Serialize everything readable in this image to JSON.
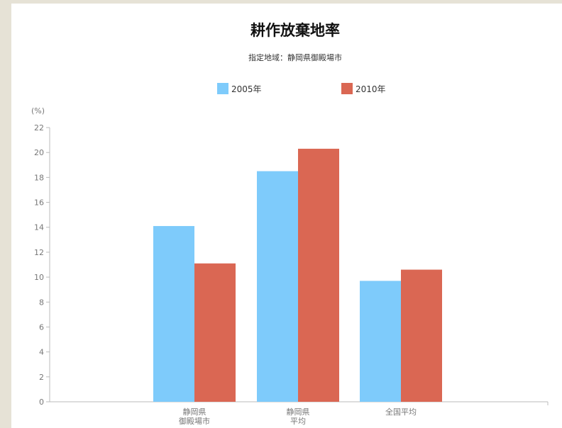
{
  "chart_data": {
    "type": "bar",
    "title": "耕作放棄地率",
    "subtitle": "指定地域：静岡県御殿場市",
    "ylabel": "(%)",
    "xlabel": "",
    "ylim": [
      0,
      22
    ],
    "yticks": [
      0,
      2,
      4,
      6,
      8,
      10,
      12,
      14,
      16,
      18,
      20,
      22
    ],
    "categories": [
      [
        "静岡県",
        "御殿場市"
      ],
      [
        "静岡県",
        "平均"
      ],
      [
        "全国平均"
      ]
    ],
    "series": [
      {
        "name": "2005年",
        "color": "#7ecbfb",
        "values": [
          14.1,
          18.5,
          9.7
        ]
      },
      {
        "name": "2010年",
        "color": "#da6753",
        "values": [
          11.1,
          20.3,
          10.6
        ]
      }
    ],
    "legend_position": "top-center",
    "grid": false
  }
}
